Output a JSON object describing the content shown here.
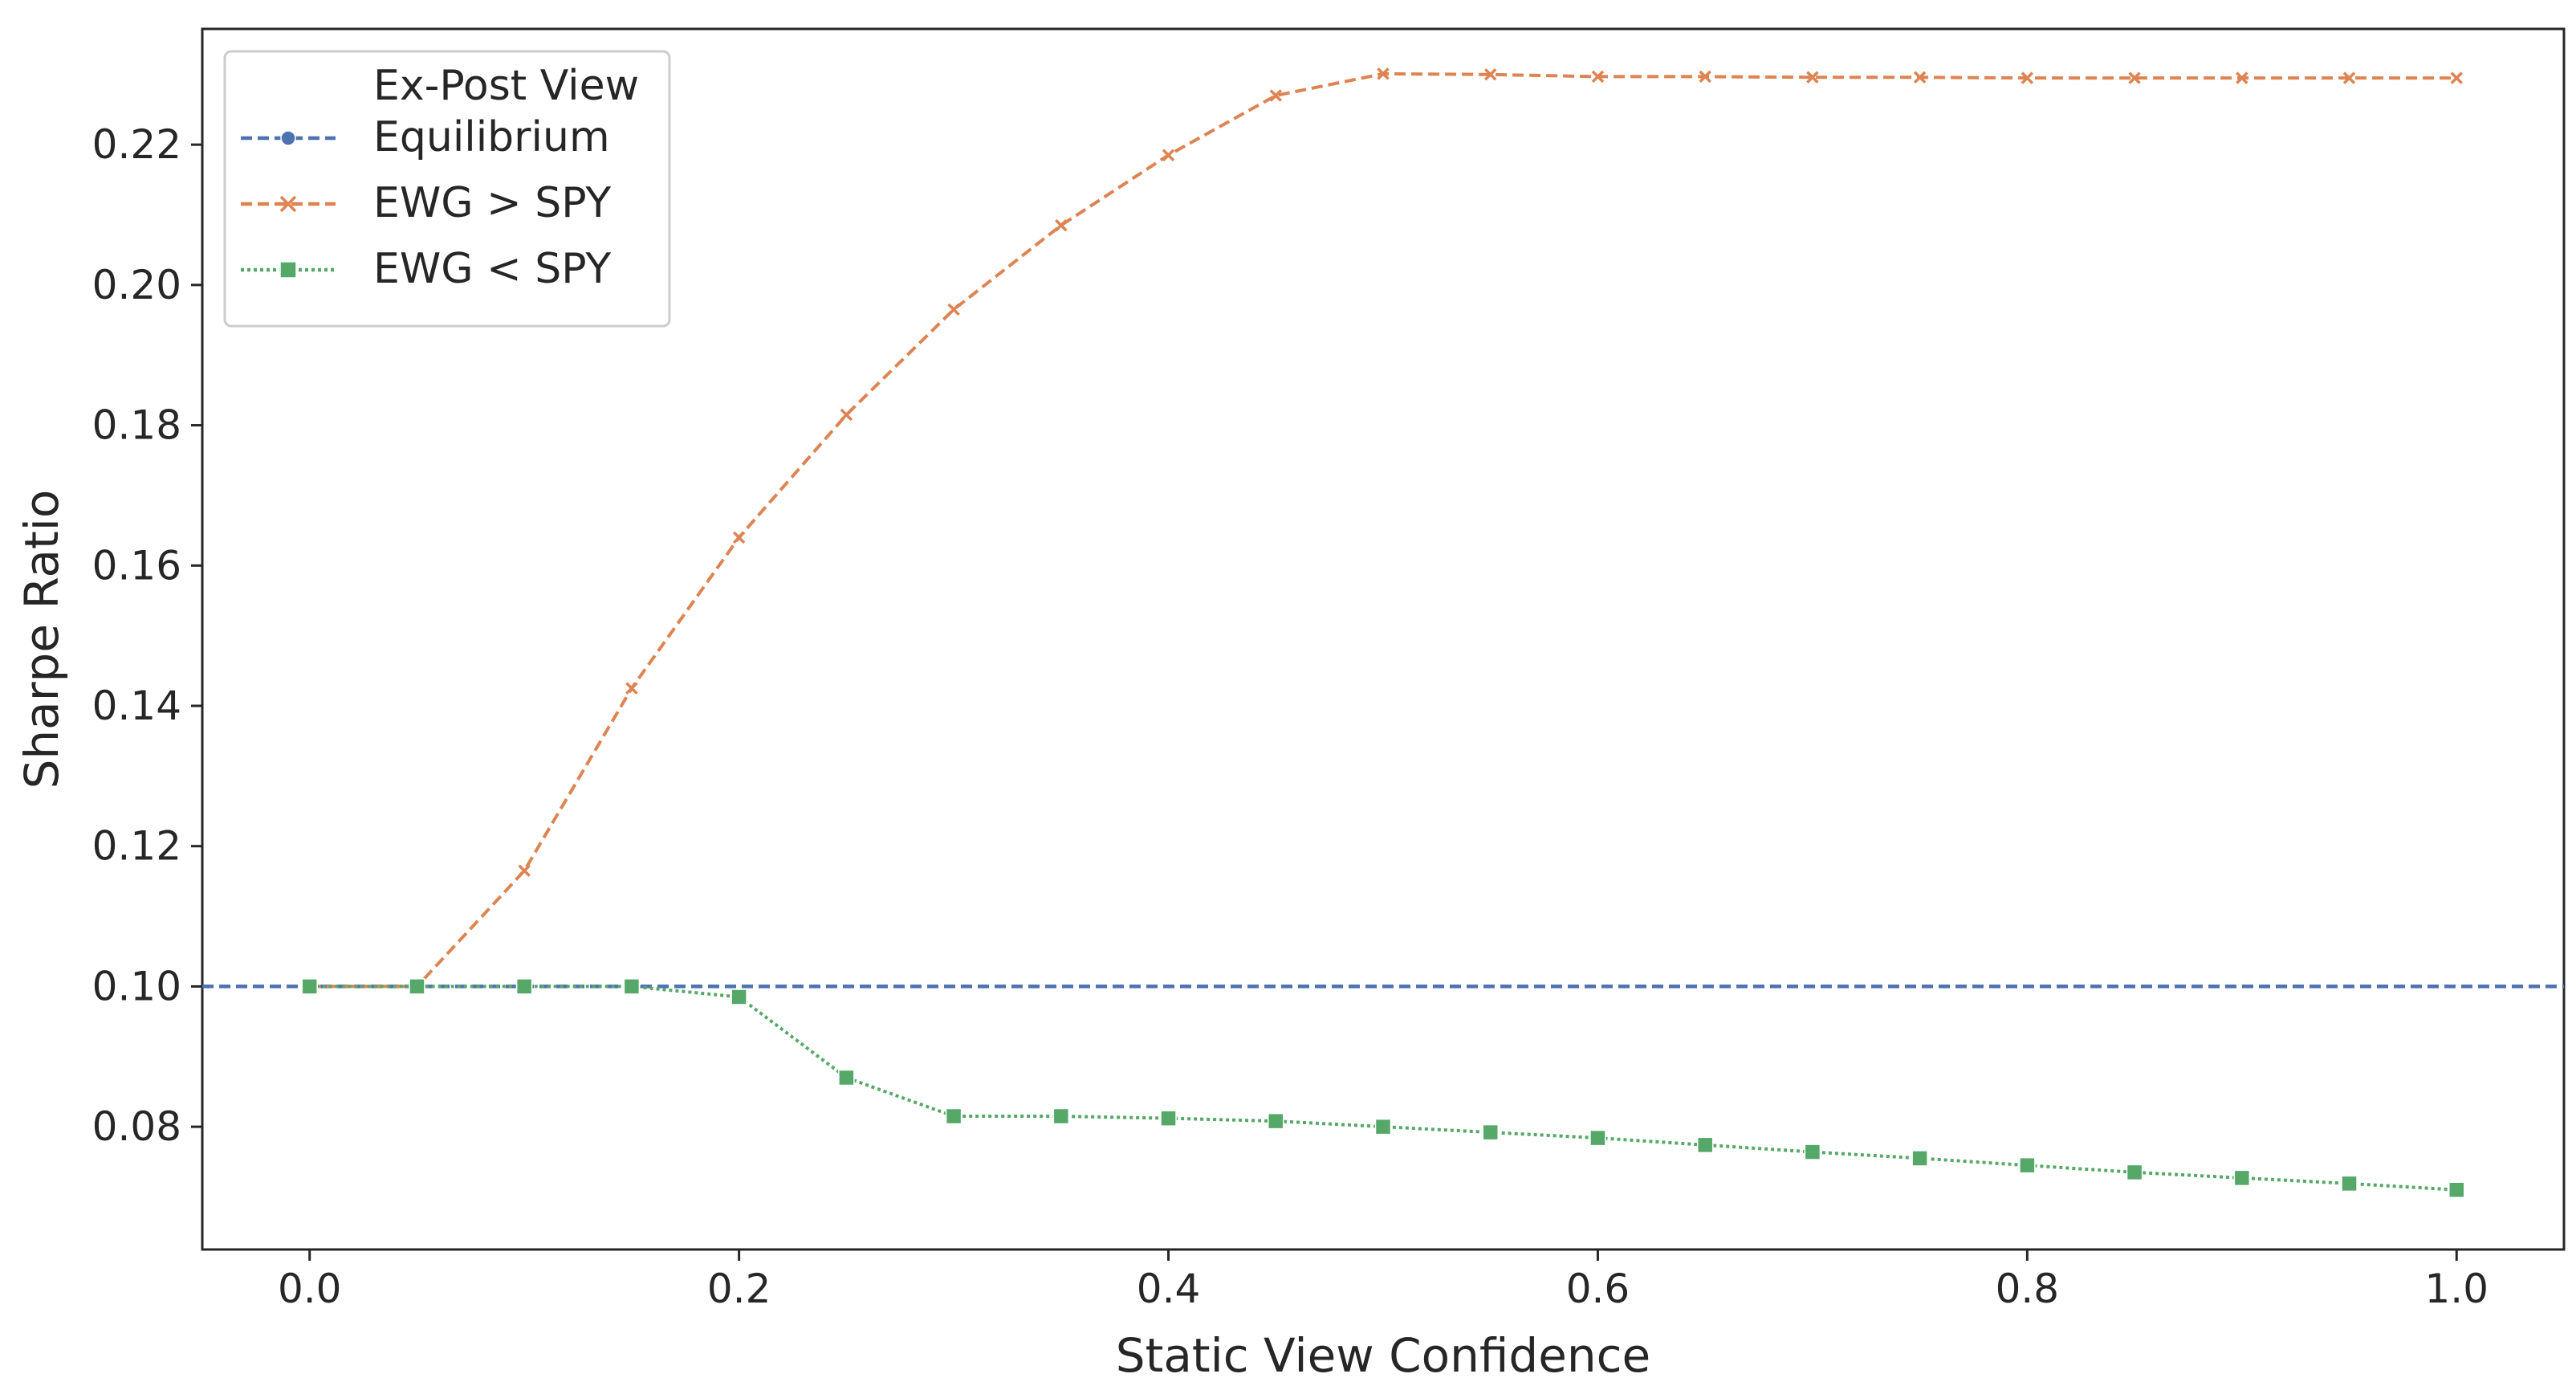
{
  "chart_data": {
    "type": "line",
    "xlabel": "Static View Confidence",
    "ylabel": "Sharpe Ratio",
    "xlim": [
      -0.05,
      1.05
    ],
    "ylim": [
      0.0625,
      0.2365
    ],
    "x_ticks": [
      "0.0",
      "0.2",
      "0.4",
      "0.6",
      "0.8",
      "1.0"
    ],
    "y_ticks": [
      "0.08",
      "0.10",
      "0.12",
      "0.14",
      "0.16",
      "0.18",
      "0.20",
      "0.22"
    ],
    "grid": false,
    "legend": {
      "title": "Ex-Post View",
      "placement": "top-left"
    },
    "x": [
      0.0,
      0.05,
      0.1,
      0.15,
      0.2,
      0.25,
      0.3,
      0.35,
      0.4,
      0.45,
      0.5,
      0.55,
      0.6,
      0.65,
      0.7,
      0.75,
      0.8,
      0.85,
      0.9,
      0.95,
      1.0
    ],
    "series": [
      {
        "name": "Equilibrium",
        "kind": "hline",
        "value": 0.1,
        "color": "#4c72b0",
        "line_style": "dashed",
        "marker": "circle"
      },
      {
        "name": "EWG > SPY",
        "kind": "line",
        "color": "#dd8452",
        "line_style": "dashed",
        "marker": "x",
        "values": [
          0.1,
          0.1,
          0.1165,
          0.1425,
          0.164,
          0.1815,
          0.1965,
          0.2085,
          0.2185,
          0.227,
          0.2301,
          0.23,
          0.2297,
          0.2297,
          0.2296,
          0.2296,
          0.2295,
          0.2295,
          0.2295,
          0.2295,
          0.2295
        ]
      },
      {
        "name": "EWG < SPY",
        "kind": "line",
        "color": "#55a868",
        "line_style": "dotted",
        "marker": "square",
        "values": [
          0.1,
          0.1,
          0.1,
          0.1,
          0.0985,
          0.087,
          0.0815,
          0.0815,
          0.0812,
          0.0808,
          0.08,
          0.0792,
          0.0784,
          0.0774,
          0.0764,
          0.0755,
          0.0745,
          0.0735,
          0.0727,
          0.0719,
          0.071
        ]
      }
    ]
  }
}
